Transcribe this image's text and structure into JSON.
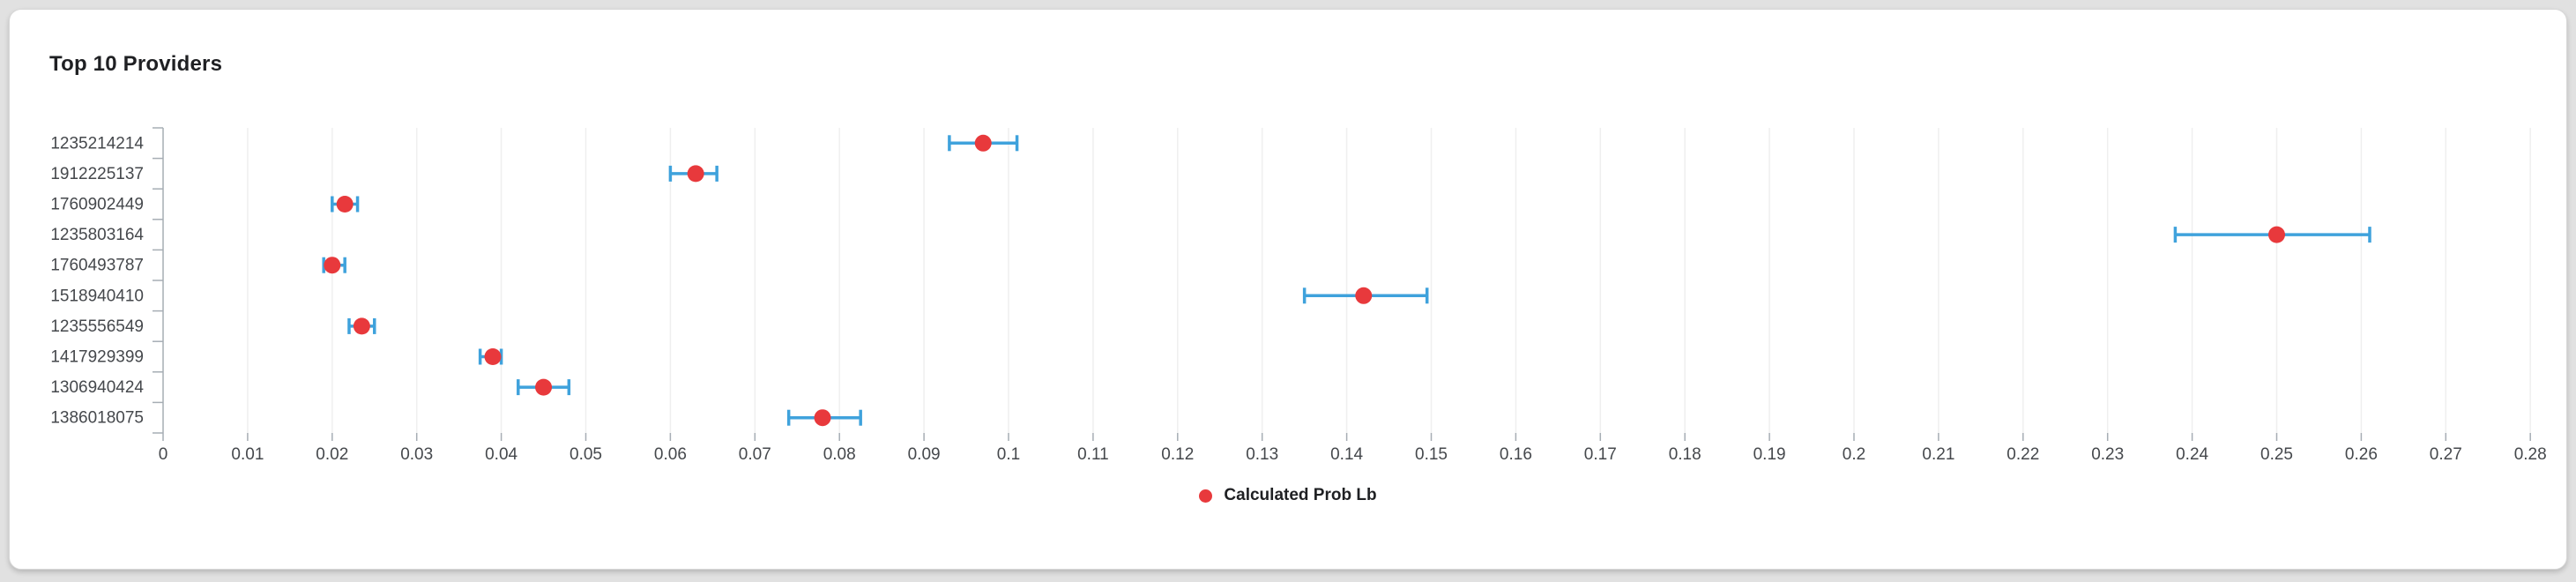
{
  "chart_data": {
    "type": "scatter",
    "subtype": "horizontal-dot-plot-with-error-bars",
    "title": "Top 10 Providers",
    "categories": [
      "1235214214",
      "1912225137",
      "1760902449",
      "1235803164",
      "1760493787",
      "1518940410",
      "1235556549",
      "1417929399",
      "1306940424",
      "1386018075"
    ],
    "series": [
      {
        "name": "Calculated Prob Lb",
        "values": [
          0.097,
          0.063,
          0.0215,
          0.25,
          0.02,
          0.142,
          0.0235,
          0.039,
          0.045,
          0.078
        ],
        "error_low": [
          0.093,
          0.06,
          0.02,
          0.238,
          0.019,
          0.135,
          0.022,
          0.0375,
          0.042,
          0.074
        ],
        "error_high": [
          0.101,
          0.0655,
          0.023,
          0.261,
          0.0215,
          0.1495,
          0.025,
          0.04,
          0.048,
          0.0825
        ]
      }
    ],
    "xlim": [
      0,
      0.285
    ],
    "x_ticks": [
      "0",
      "0.01",
      "0.02",
      "0.03",
      "0.04",
      "0.05",
      "0.06",
      "0.07",
      "0.08",
      "0.09",
      "0.1",
      "0.11",
      "0.12",
      "0.13",
      "0.14",
      "0.15",
      "0.16",
      "0.17",
      "0.18",
      "0.19",
      "0.2",
      "0.21",
      "0.22",
      "0.23",
      "0.24",
      "0.25",
      "0.26",
      "0.27",
      "0.28"
    ],
    "grid": true,
    "legend": {
      "position": "bottom-center",
      "entries": [
        {
          "label": "Calculated Prob Lb",
          "marker": "dot",
          "color": "#e8393c"
        }
      ]
    },
    "colors": {
      "marker": "#e8393c",
      "error_bar": "#3fa2dc",
      "gridline": "#efefef",
      "axis": "#a6adb4",
      "tick_label": "#45484c",
      "title": "#1f2023",
      "card_bg": "#ffffff",
      "page_bg": "#e1e1e1"
    }
  }
}
